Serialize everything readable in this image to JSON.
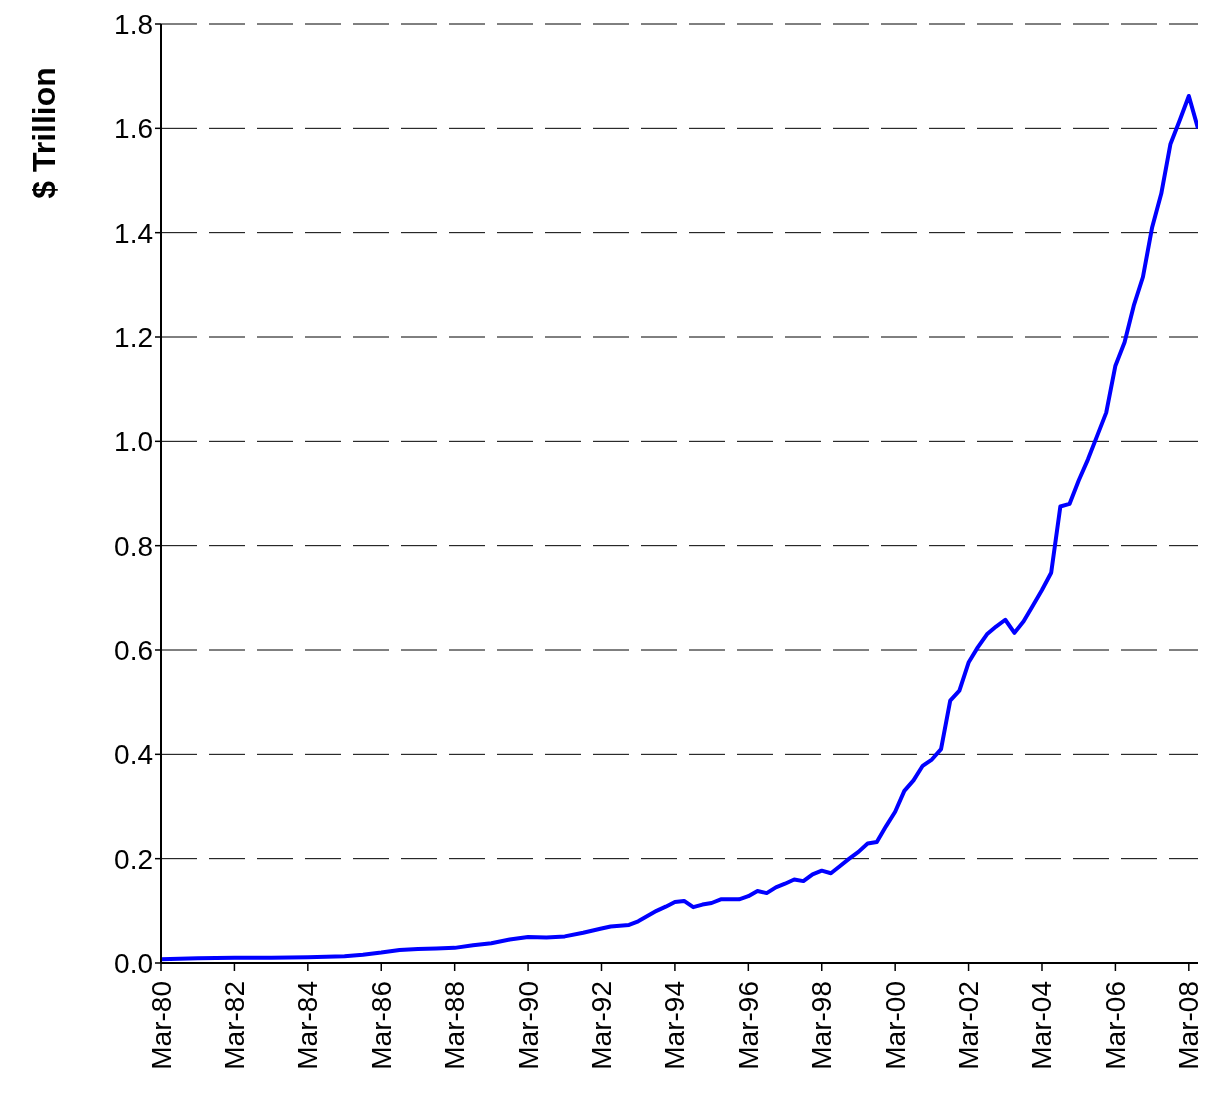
{
  "chart_data": {
    "type": "line",
    "ylabel": "$ Trillion",
    "x": [
      "1980-03",
      "1981-03",
      "1982-03",
      "1983-03",
      "1984-03",
      "1985-03",
      "1985-09",
      "1986-03",
      "1986-09",
      "1987-03",
      "1987-09",
      "1988-03",
      "1988-09",
      "1989-03",
      "1989-09",
      "1990-03",
      "1990-09",
      "1991-03",
      "1991-09",
      "1992-03",
      "1992-06",
      "1992-12",
      "1993-03",
      "1993-09",
      "1993-12",
      "1994-03",
      "1994-06",
      "1994-09",
      "1994-12",
      "1995-03",
      "1995-06",
      "1995-09",
      "1995-12",
      "1996-03",
      "1996-06",
      "1996-09",
      "1996-12",
      "1997-03",
      "1997-06",
      "1997-09",
      "1997-12",
      "1998-03",
      "1998-06",
      "1998-09",
      "1998-12",
      "1999-03",
      "1999-06",
      "1999-09",
      "1999-12",
      "2000-03",
      "2000-06",
      "2000-09",
      "2000-12",
      "2001-03",
      "2001-06",
      "2001-09",
      "2001-12",
      "2002-03",
      "2002-06",
      "2002-09",
      "2002-12",
      "2003-03",
      "2003-06",
      "2003-09",
      "2003-12",
      "2004-03",
      "2004-06",
      "2004-09",
      "2004-12",
      "2005-03",
      "2005-06",
      "2005-09",
      "2005-12",
      "2006-03",
      "2006-06",
      "2006-09",
      "2006-12",
      "2007-03",
      "2007-06",
      "2007-09",
      "2007-12",
      "2008-03",
      "2008-06"
    ],
    "series": [
      {
        "color": "#0000ff",
        "values": [
          0.007,
          0.009,
          0.01,
          0.01,
          0.011,
          0.013,
          0.016,
          0.02,
          0.025,
          0.027,
          0.028,
          0.029,
          0.034,
          0.038,
          0.045,
          0.05,
          0.049,
          0.051,
          0.058,
          0.066,
          0.07,
          0.073,
          0.08,
          0.1,
          0.108,
          0.117,
          0.119,
          0.107,
          0.112,
          0.115,
          0.122,
          0.122,
          0.122,
          0.128,
          0.138,
          0.134,
          0.145,
          0.152,
          0.16,
          0.157,
          0.17,
          0.177,
          0.172,
          0.186,
          0.2,
          0.213,
          0.229,
          0.232,
          0.262,
          0.29,
          0.33,
          0.35,
          0.378,
          0.39,
          0.41,
          0.503,
          0.522,
          0.576,
          0.605,
          0.63,
          0.645,
          0.658,
          0.633,
          0.655,
          0.685,
          0.715,
          0.748,
          0.875,
          0.88,
          0.925,
          0.965,
          1.01,
          1.055,
          1.145,
          1.19,
          1.26,
          1.315,
          1.41,
          1.475,
          1.57,
          1.615,
          1.662,
          1.6
        ]
      }
    ],
    "xlim": [
      "1980-03",
      "2008-06"
    ],
    "xticks": [
      {
        "value": "1980-03",
        "label": "Mar-80"
      },
      {
        "value": "1982-03",
        "label": "Mar-82"
      },
      {
        "value": "1984-03",
        "label": "Mar-84"
      },
      {
        "value": "1986-03",
        "label": "Mar-86"
      },
      {
        "value": "1988-03",
        "label": "Mar-88"
      },
      {
        "value": "1990-03",
        "label": "Mar-90"
      },
      {
        "value": "1992-03",
        "label": "Mar-92"
      },
      {
        "value": "1994-03",
        "label": "Mar-94"
      },
      {
        "value": "1996-03",
        "label": "Mar-96"
      },
      {
        "value": "1998-03",
        "label": "Mar-98"
      },
      {
        "value": "2000-03",
        "label": "Mar-00"
      },
      {
        "value": "2002-03",
        "label": "Mar-02"
      },
      {
        "value": "2004-03",
        "label": "Mar-04"
      },
      {
        "value": "2006-03",
        "label": "Mar-06"
      },
      {
        "value": "2008-03",
        "label": "Mar-08"
      }
    ],
    "ylim": [
      0,
      1.8
    ],
    "yticks": [
      {
        "value": 0,
        "label": "0.0"
      },
      {
        "value": 0.2,
        "label": "0.2"
      },
      {
        "value": 0.4,
        "label": "0.4"
      },
      {
        "value": 0.6,
        "label": "0.6"
      },
      {
        "value": 0.8,
        "label": "0.8"
      },
      {
        "value": 1.0,
        "label": "1.0"
      },
      {
        "value": 1.2,
        "label": "1.2"
      },
      {
        "value": 1.4,
        "label": "1.4"
      },
      {
        "value": 1.6,
        "label": "1.6"
      },
      {
        "value": 1.8,
        "label": "1.8"
      }
    ],
    "grid": "y",
    "marker": "none",
    "line_style": "solid",
    "legend": false
  }
}
